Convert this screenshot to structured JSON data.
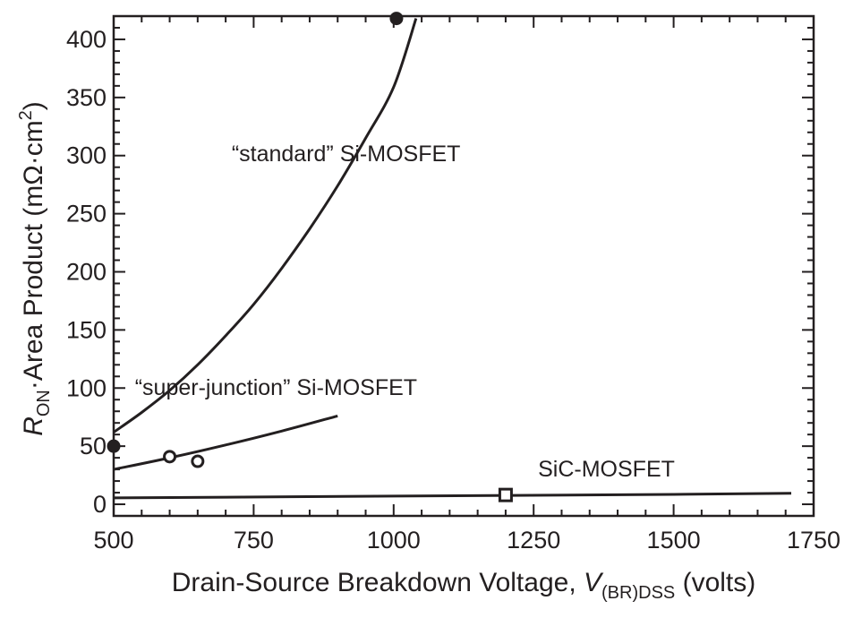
{
  "chart_data": {
    "type": "line",
    "xlabel": {
      "main": "Drain-Source Breakdown Voltage, ",
      "var": "V",
      "sub": "(BR)DSS",
      "suffix": " (volts)"
    },
    "ylabel": {
      "var": "R",
      "sub": "ON",
      "main": "·Area Product (mΩ·cm",
      "sup": "2",
      "suffix": ")"
    },
    "xlim": [
      500,
      1750
    ],
    "ylim": [
      -10,
      420
    ],
    "xticks": [
      500,
      750,
      1000,
      1250,
      1500,
      1750
    ],
    "xtick_labels": [
      "500",
      "750",
      "1000",
      "1250",
      "1500",
      "1750"
    ],
    "x_minor_step": 50,
    "yticks": [
      0,
      50,
      100,
      150,
      200,
      250,
      300,
      350,
      400
    ],
    "ytick_labels": [
      "0",
      "50",
      "100",
      "150",
      "200",
      "250",
      "300",
      "350",
      "400"
    ],
    "y_minor_step": 10,
    "series": [
      {
        "name": "“standard” Si-MOSFET",
        "x": [
          500,
          550,
          600,
          650,
          700,
          750,
          800,
          850,
          900,
          950,
          1000,
          1040
        ],
        "y": [
          62,
          79,
          98,
          120,
          145,
          172,
          203,
          237,
          274,
          315,
          359,
          418
        ],
        "markers": {
          "style": "filled-circle",
          "x": [
            500,
            1005
          ],
          "y": [
            50,
            418
          ]
        }
      },
      {
        "name": "“super-junction” Si-MOSFET",
        "x": [
          500,
          600,
          700,
          800,
          900
        ],
        "y": [
          30,
          40,
          51,
          63,
          76
        ],
        "markers": {
          "style": "open-circle",
          "x": [
            600,
            650
          ],
          "y": [
            41,
            37
          ]
        }
      },
      {
        "name": "SiC-MOSFET",
        "x": [
          500,
          1000,
          1500,
          1710
        ],
        "y": [
          5.5,
          7,
          8.5,
          9.5
        ],
        "markers": {
          "style": "open-square",
          "x": [
            1200
          ],
          "y": [
            8
          ]
        }
      }
    ],
    "annotations": [
      {
        "text": "“standard” Si-MOSFET",
        "x": 915,
        "y": 295
      },
      {
        "text": "“super-junction” Si-MOSFET",
        "x": 790,
        "y": 94
      },
      {
        "text": "SiC-MOSFET",
        "x": 1380,
        "y": 24
      }
    ]
  }
}
